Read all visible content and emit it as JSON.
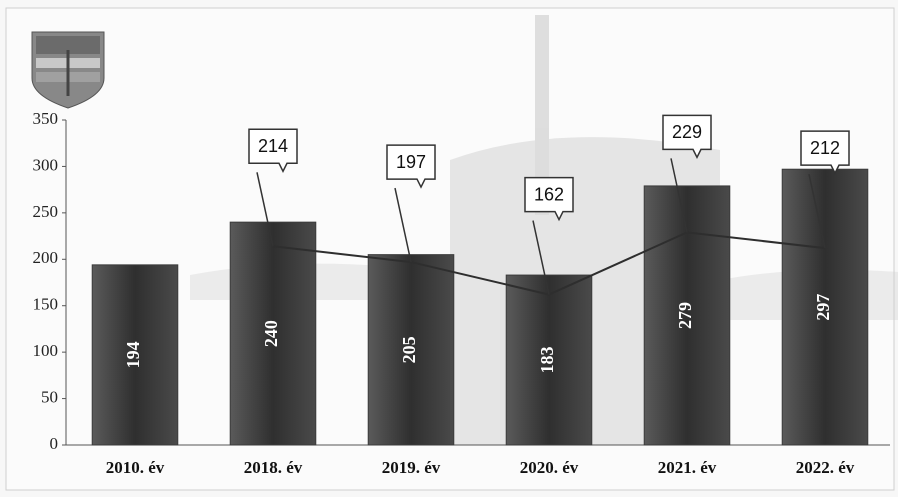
{
  "chart_data": {
    "type": "bar",
    "categories": [
      "2010. év",
      "2018. év",
      "2019. év",
      "2020. év",
      "2021. év",
      "2022. év"
    ],
    "series": [
      {
        "type": "bar",
        "color": "#3b3b3b",
        "values": [
          194,
          240,
          205,
          183,
          279,
          297
        ]
      },
      {
        "type": "line",
        "color": "#2e2e2e",
        "values": [
          null,
          214,
          197,
          162,
          229,
          212
        ]
      }
    ],
    "ylim": [
      0,
      350
    ],
    "yticks": [
      0,
      50,
      100,
      150,
      200,
      250,
      300,
      350
    ],
    "grid": false
  }
}
